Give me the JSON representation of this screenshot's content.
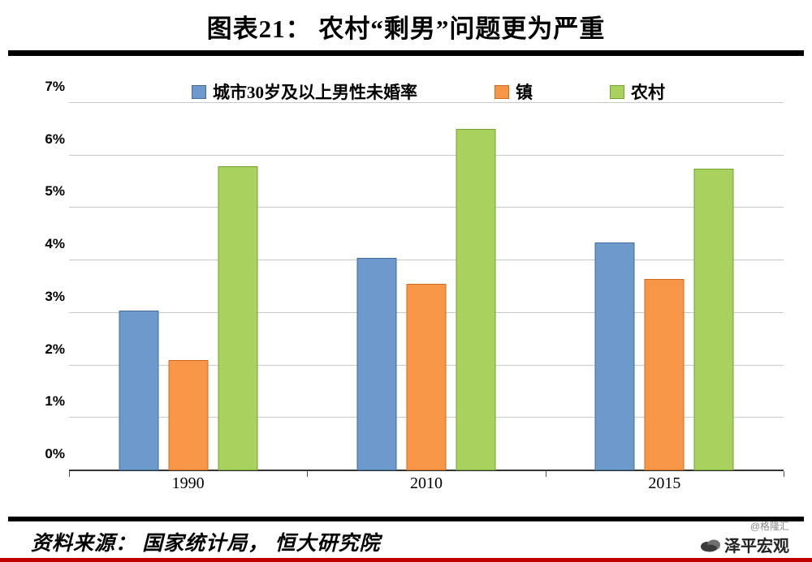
{
  "header": {
    "title": "图表21： 农村“剩男”问题更为严重"
  },
  "chart_data": {
    "type": "bar",
    "title": "图表21： 农村“剩男”问题更为严重",
    "categories": [
      "1990",
      "2010",
      "2015"
    ],
    "series": [
      {
        "name": "城市30岁及以上男性未婚率",
        "color": "#6d99cc",
        "border": "#3f6d9e",
        "values": [
          3.05,
          4.05,
          4.35
        ]
      },
      {
        "name": "镇",
        "color": "#f79646",
        "border": "#d26a1e",
        "values": [
          2.1,
          3.55,
          3.65
        ]
      },
      {
        "name": "农村",
        "color": "#a8d15e",
        "border": "#6fa32e",
        "values": [
          5.8,
          6.5,
          5.75
        ]
      }
    ],
    "ylim": [
      0,
      7
    ],
    "ytick_step": 1,
    "ytick_suffix": "%",
    "grid": true,
    "legend_position": "top",
    "xlabel": "",
    "ylabel": ""
  },
  "footer": {
    "source": "资料来源： 国家统计局， 恒大研究院",
    "watermark_handle": "@格隆汇",
    "watermark_brand": "泽平宏观"
  },
  "colors": {
    "rule_black": "#000000",
    "rule_red": "#c00000",
    "gridline": "#c9c9c9"
  }
}
